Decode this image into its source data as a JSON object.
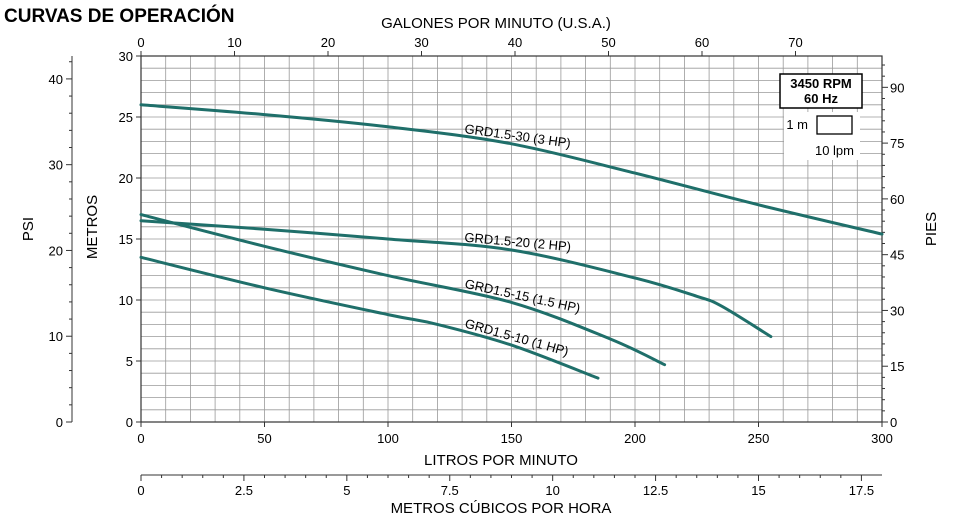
{
  "title": "CURVAS DE OPERACIÓN",
  "legend_box": {
    "rpm": "3450 RPM",
    "hz": "60 Hz",
    "scale_y": "1 m",
    "scale_x": "10 lpm"
  },
  "axes": {
    "top_label": "GALONES POR MINUTO (U.S.A.)",
    "bottom_label": "LITROS POR MINUTO",
    "bottom2_label": "METROS CÚBICOS POR HORA",
    "left_label": "METROS",
    "left2_label": "PSI",
    "right_label": "PIES",
    "top_ticks": [
      "0",
      "10",
      "20",
      "30",
      "40",
      "50",
      "60",
      "70"
    ],
    "bottom_ticks": [
      "0",
      "50",
      "100",
      "150",
      "200",
      "250",
      "300"
    ],
    "bottom2_ticks": [
      "0",
      "2.5",
      "5",
      "7.5",
      "10",
      "12.5",
      "15",
      "17.5"
    ],
    "left_ticks": [
      "0",
      "5",
      "10",
      "15",
      "20",
      "25",
      "30"
    ],
    "psi_ticks": [
      "0",
      "10",
      "20",
      "30",
      "40"
    ],
    "right_ticks": [
      "0",
      "15",
      "30",
      "45",
      "60",
      "75",
      "90"
    ]
  },
  "chart_data": {
    "type": "line",
    "title": "CURVAS DE OPERACIÓN",
    "xlabel": "LITROS POR MINUTO",
    "ylabel": "METROS",
    "xlim": [
      0,
      300
    ],
    "ylim": [
      0,
      30
    ],
    "grid": true,
    "color": "#1f6f6a",
    "series": [
      {
        "name": "GRD1.5-30 (3 HP)",
        "x": [
          0,
          50,
          100,
          150,
          200,
          250,
          300
        ],
        "y": [
          26.0,
          25.2,
          24.2,
          22.8,
          20.4,
          17.8,
          15.4
        ]
      },
      {
        "name": "GRD1.5-20 (2 HP)",
        "x": [
          0,
          50,
          100,
          150,
          200,
          225,
          235,
          255
        ],
        "y": [
          16.5,
          15.8,
          15.0,
          14.1,
          11.8,
          10.3,
          9.5,
          7.0
        ]
      },
      {
        "name": "GRD1.5-15 (1.5 HP)",
        "x": [
          0,
          50,
          100,
          150,
          190,
          212
        ],
        "y": [
          17.0,
          14.4,
          12.0,
          9.8,
          6.8,
          4.7
        ]
      },
      {
        "name": "GRD1.5-10 (1 HP)",
        "x": [
          0,
          50,
          100,
          120,
          150,
          185
        ],
        "y": [
          13.5,
          11.0,
          8.8,
          8.0,
          6.3,
          3.6
        ]
      }
    ]
  }
}
